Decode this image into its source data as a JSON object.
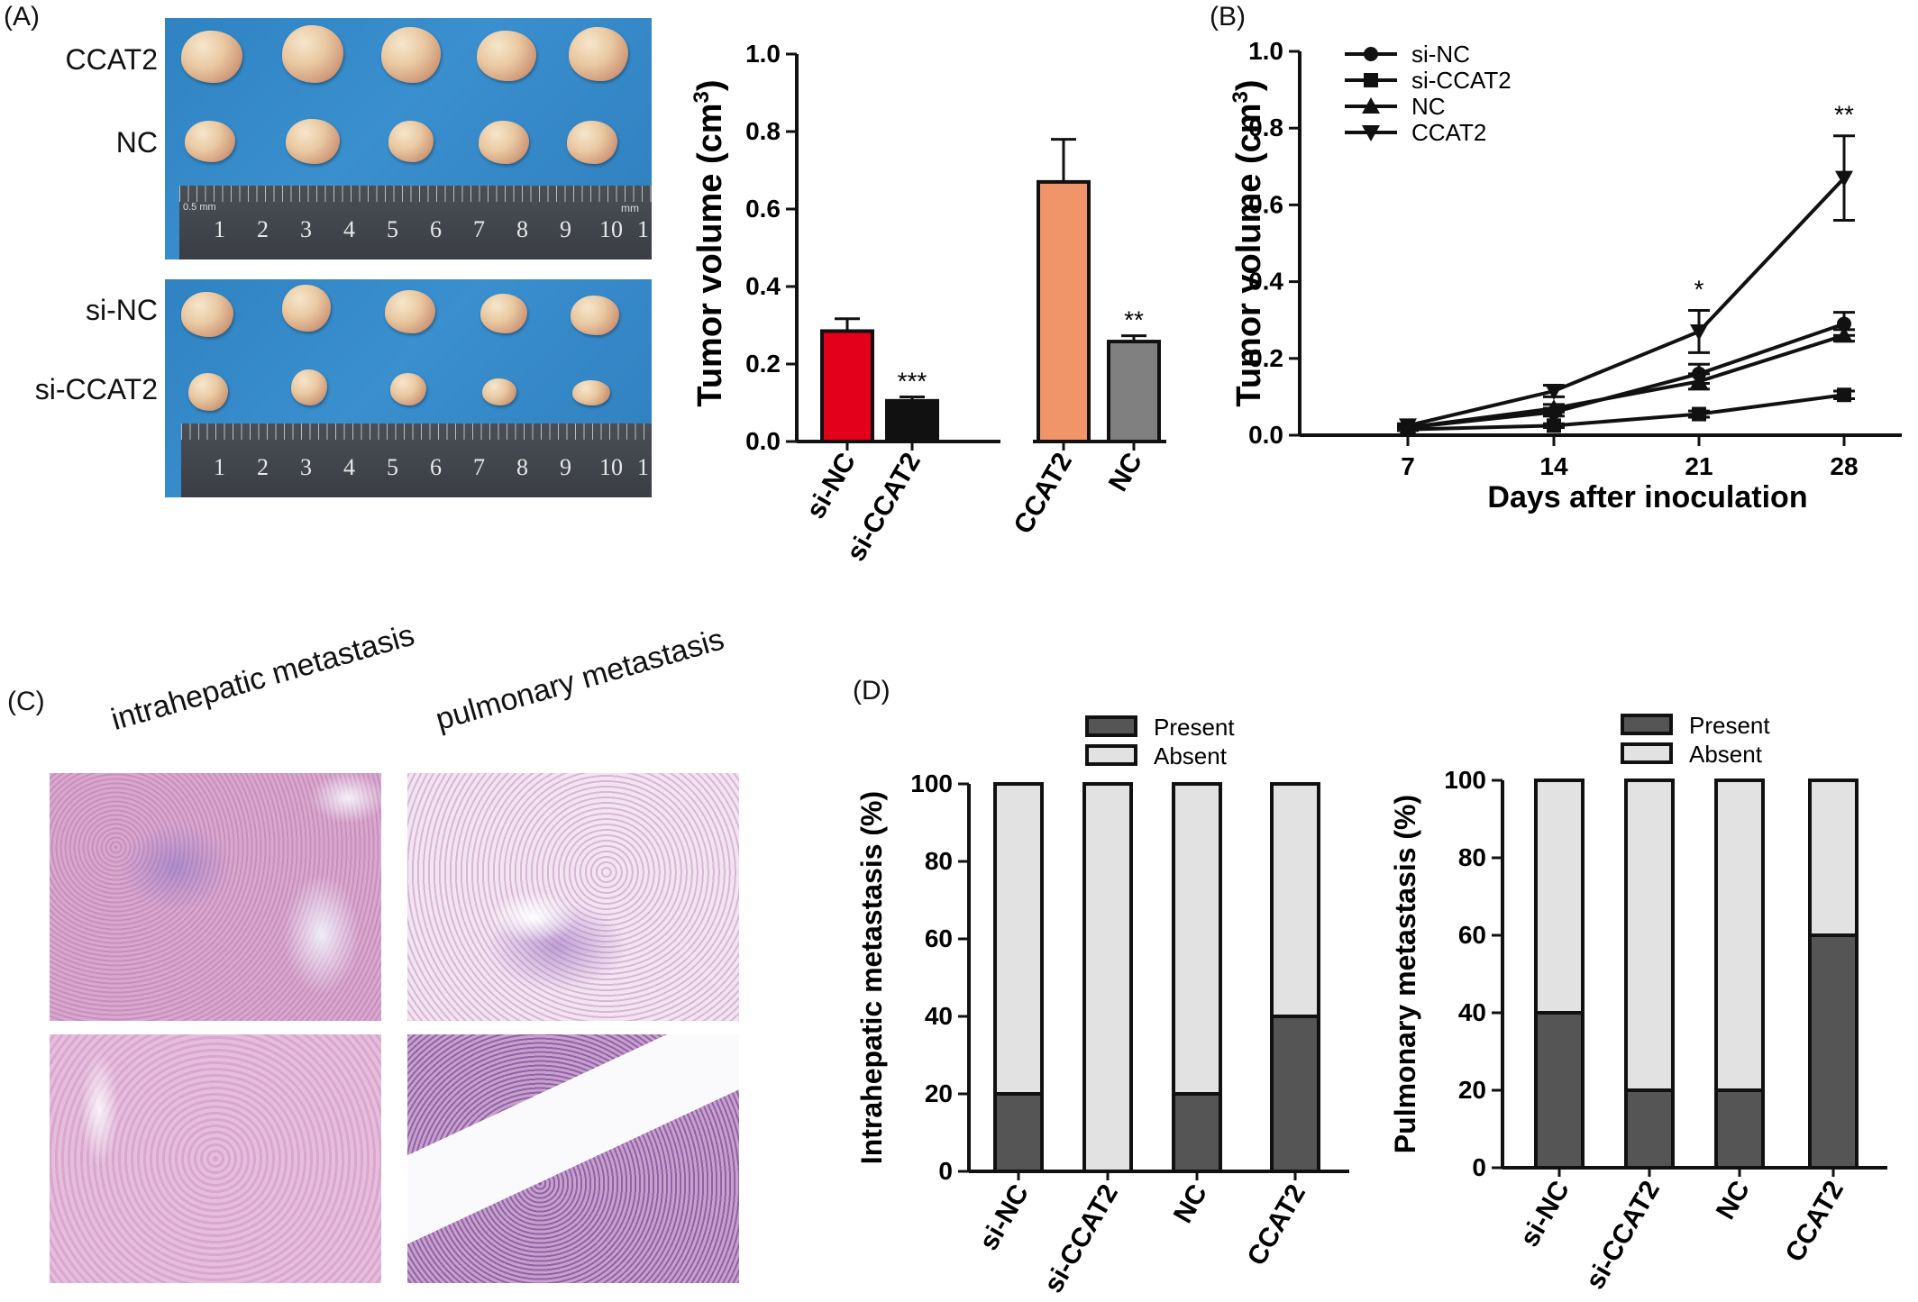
{
  "panels": {
    "a": "(A)",
    "b": "(B)",
    "c": "(C)",
    "d": "(D)"
  },
  "photo_rows": {
    "top": [
      "CCAT2",
      "NC"
    ],
    "bottom": [
      "si-NC",
      "si-CCAT2"
    ]
  },
  "ruler": {
    "mark": "0.5 mm",
    "unit": "mm",
    "numbers": [
      "1",
      "2",
      "3",
      "4",
      "5",
      "6",
      "7",
      "8",
      "9",
      "10",
      "1"
    ]
  },
  "micrographs": {
    "left_title": "intrahepatic metastasis",
    "right_title": "pulmonary metastasis"
  },
  "colors": {
    "si_NC": "#e3001b",
    "si_CCAT2": "#111111",
    "CCAT2": "#f0946a",
    "NC": "#808080",
    "present": "#555555",
    "absent": "#e2e2e2",
    "photo_bg": "#3489c8"
  },
  "chart_data": [
    {
      "id": "tumor-volume-bar",
      "type": "bar",
      "categories": [
        "si-NC",
        "si-CCAT2",
        "CCAT2",
        "NC"
      ],
      "values": [
        0.285,
        0.105,
        0.67,
        0.258
      ],
      "errors": [
        0.032,
        0.01,
        0.11,
        0.015
      ],
      "significance": [
        "",
        "***",
        "",
        "**"
      ],
      "ylabel": "Tumor volume (cm",
      "ylabel_sup": "3",
      "ylabel_close": ")",
      "ylim": [
        0,
        1.0
      ],
      "yticks": [
        "0.0",
        "0.2",
        "0.4",
        "0.6",
        "0.8",
        "1.0"
      ]
    },
    {
      "id": "tumor-growth-line",
      "type": "line",
      "x": [
        7,
        14,
        21,
        28
      ],
      "xticks": [
        "7",
        "14",
        "21",
        "28"
      ],
      "xlabel": "Days after inoculation",
      "ylabel": "Tumor volume (cm",
      "ylabel_sup": "3",
      "ylabel_close": ")",
      "ylim": [
        0,
        1.0
      ],
      "yticks": [
        "0.0",
        "0.2",
        "0.4",
        "0.6",
        "0.8",
        "1.0"
      ],
      "legend_position": "top-left",
      "series": [
        {
          "name": "si-NC",
          "marker": "circle",
          "values": [
            0.02,
            0.06,
            0.16,
            0.29
          ],
          "errors": [
            0.005,
            0.01,
            0.025,
            0.03
          ]
        },
        {
          "name": "si-CCAT2",
          "marker": "square",
          "values": [
            0.015,
            0.025,
            0.055,
            0.105
          ],
          "errors": [
            0.003,
            0.005,
            0.008,
            0.01
          ]
        },
        {
          "name": "NC",
          "marker": "triangle-up",
          "values": [
            0.02,
            0.07,
            0.14,
            0.26
          ],
          "errors": [
            0.005,
            0.01,
            0.02,
            0.015
          ]
        },
        {
          "name": "CCAT2",
          "marker": "triangle-down",
          "values": [
            0.025,
            0.115,
            0.27,
            0.67
          ],
          "errors": [
            0.005,
            0.015,
            0.055,
            0.11
          ]
        }
      ],
      "annotations": [
        {
          "x": 21,
          "text": "*"
        },
        {
          "x": 28,
          "text": "**"
        }
      ]
    },
    {
      "id": "intrahepatic-stacked",
      "type": "bar",
      "stacked": true,
      "categories": [
        "si-NC",
        "si-CCAT2",
        "NC",
        "CCAT2"
      ],
      "series": [
        {
          "name": "Present",
          "values": [
            20,
            0,
            20,
            40
          ]
        },
        {
          "name": "Absent",
          "values": [
            80,
            100,
            80,
            60
          ]
        }
      ],
      "ylabel": "Intrahepatic metastasis (%)",
      "ylim": [
        0,
        100
      ],
      "yticks": [
        "0",
        "20",
        "40",
        "60",
        "80",
        "100"
      ],
      "legend_position": "top"
    },
    {
      "id": "pulmonary-stacked",
      "type": "bar",
      "stacked": true,
      "categories": [
        "si-NC",
        "si-CCAT2",
        "NC",
        "CCAT2"
      ],
      "series": [
        {
          "name": "Present",
          "values": [
            40,
            20,
            20,
            60
          ]
        },
        {
          "name": "Absent",
          "values": [
            60,
            80,
            80,
            40
          ]
        }
      ],
      "ylabel": "Pulmonary metastasis (%)",
      "ylim": [
        0,
        100
      ],
      "yticks": [
        "0",
        "20",
        "40",
        "60",
        "80",
        "100"
      ],
      "legend_position": "top"
    }
  ]
}
